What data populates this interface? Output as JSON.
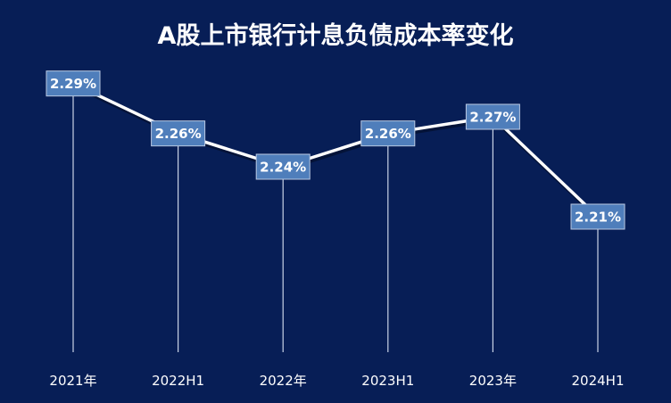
{
  "colors": {
    "background": "#071e56",
    "line": "#ffffff",
    "drop_line": "#c9d3e6",
    "label_box": "#4f7ebb",
    "label_border": "#b8c8e2",
    "text": "#ffffff"
  },
  "chart_data": {
    "type": "line",
    "title": "A股上市银行计息负债成本率变化",
    "xlabel": "",
    "ylabel": "",
    "categories": [
      "2021年",
      "2022H1",
      "2022年",
      "2023H1",
      "2023年",
      "2024H1"
    ],
    "series": [
      {
        "values": [
          2.29,
          2.26,
          2.24,
          2.26,
          2.27,
          2.21
        ],
        "data_labels": [
          "2.29%",
          "2.26%",
          "2.24%",
          "2.26%",
          "2.27%",
          "2.21%"
        ]
      }
    ],
    "ylim": [
      2.15,
      2.3
    ],
    "grid": false,
    "drop_lines": true,
    "legend": "none"
  }
}
